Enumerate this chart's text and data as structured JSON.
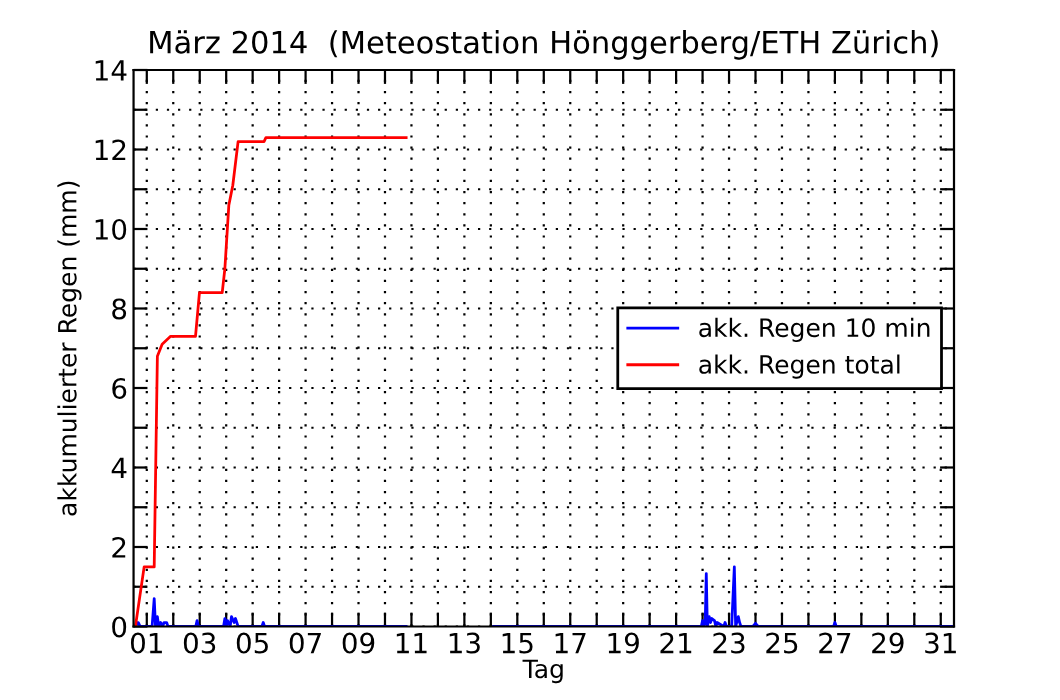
{
  "chart_data": {
    "type": "line",
    "title": "März 2014  (Meteostation Hönggerberg/ETH Zürich)",
    "xlabel": "Tag",
    "ylabel": "akkumulierter Regen (mm)",
    "xlim": [
      0.5,
      31.5
    ],
    "ylim": [
      0,
      14
    ],
    "xticks": [
      {
        "value": 1,
        "label": "01"
      },
      {
        "value": 2,
        "label": null
      },
      {
        "value": 3,
        "label": "03"
      },
      {
        "value": 4,
        "label": null
      },
      {
        "value": 5,
        "label": "05"
      },
      {
        "value": 6,
        "label": null
      },
      {
        "value": 7,
        "label": "07"
      },
      {
        "value": 8,
        "label": null
      },
      {
        "value": 9,
        "label": "09"
      },
      {
        "value": 10,
        "label": null
      },
      {
        "value": 11,
        "label": "11"
      },
      {
        "value": 12,
        "label": null
      },
      {
        "value": 13,
        "label": "13"
      },
      {
        "value": 14,
        "label": null
      },
      {
        "value": 15,
        "label": "15"
      },
      {
        "value": 16,
        "label": null
      },
      {
        "value": 17,
        "label": "17"
      },
      {
        "value": 18,
        "label": null
      },
      {
        "value": 19,
        "label": "19"
      },
      {
        "value": 20,
        "label": null
      },
      {
        "value": 21,
        "label": "21"
      },
      {
        "value": 22,
        "label": null
      },
      {
        "value": 23,
        "label": "23"
      },
      {
        "value": 24,
        "label": null
      },
      {
        "value": 25,
        "label": "25"
      },
      {
        "value": 26,
        "label": null
      },
      {
        "value": 27,
        "label": "27"
      },
      {
        "value": 28,
        "label": null
      },
      {
        "value": 29,
        "label": "29"
      },
      {
        "value": 30,
        "label": null
      },
      {
        "value": 31,
        "label": "31"
      }
    ],
    "yticks": [
      0,
      {
        "value": 1,
        "label": null
      },
      2,
      {
        "value": 3,
        "label": null
      },
      4,
      {
        "value": 5,
        "label": null
      },
      6,
      {
        "value": 7,
        "label": null
      },
      8,
      {
        "value": 9,
        "label": null
      },
      10,
      {
        "value": 11,
        "label": null
      },
      12,
      {
        "value": 13,
        "label": null
      },
      14
    ],
    "grid": true,
    "legend": "right",
    "line_style": "solid",
    "marker": "none",
    "series": [
      {
        "name": "akk. Regen 10 min",
        "color": "#0000ff",
        "x": [
          0.57,
          0.62,
          0.68,
          0.75,
          1.2,
          1.28,
          1.33,
          1.4,
          1.45,
          1.52,
          1.6,
          1.65,
          1.75,
          1.8,
          2.85,
          2.9,
          2.95,
          3.9,
          3.95,
          4.0,
          4.05,
          4.15,
          4.2,
          4.3,
          4.35,
          4.45,
          5.35,
          5.4,
          5.45,
          10.8,
          null,
          14.1,
          21.95,
          22.0,
          22.05,
          22.1,
          22.14,
          22.18,
          22.25,
          22.3,
          22.35,
          22.45,
          22.5,
          22.55,
          22.8,
          22.85,
          22.9,
          23.1,
          23.2,
          23.25,
          23.35,
          23.4,
          23.45,
          23.9,
          24.0,
          24.1,
          26.95,
          27.0,
          27.05,
          31.5
        ],
        "values": [
          0,
          0.1,
          0.1,
          0,
          0,
          0.7,
          0,
          0.25,
          0,
          0.1,
          0,
          0.1,
          0.1,
          0,
          0,
          0.15,
          0,
          0,
          0.2,
          0,
          0.15,
          0,
          0.25,
          0.1,
          0.2,
          0,
          0,
          0.1,
          0,
          0,
          null,
          0,
          0,
          0.15,
          0,
          0.1,
          1.33,
          0,
          0.25,
          0.1,
          0.2,
          0.15,
          0,
          0.1,
          0,
          0.1,
          0,
          0,
          1.5,
          0,
          0.25,
          0.1,
          0,
          0,
          0.08,
          0,
          0,
          0.1,
          0,
          0
        ]
      },
      {
        "name": "akk. Regen total",
        "color": "#ff0000",
        "x": [
          0.57,
          0.9,
          1.28,
          1.4,
          1.58,
          1.9,
          2.84,
          2.99,
          3.85,
          3.95,
          4.1,
          4.25,
          4.45,
          5.43,
          5.5,
          10.8
        ],
        "values": [
          0,
          1.5,
          1.5,
          6.8,
          7.1,
          7.3,
          7.3,
          8.4,
          8.4,
          9.0,
          10.6,
          11.1,
          12.2,
          12.2,
          12.3,
          12.3
        ]
      }
    ]
  }
}
